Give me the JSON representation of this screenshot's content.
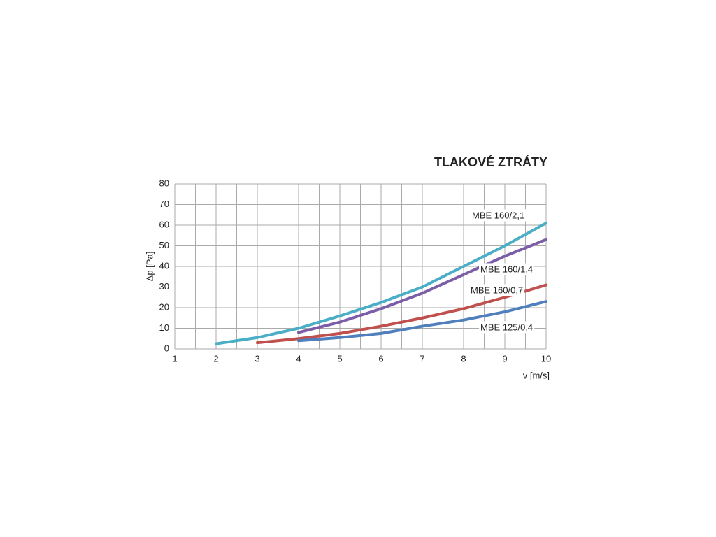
{
  "chart_data": {
    "type": "line",
    "title": "TLAKOVÉ ZTRÁTY",
    "x_label": "v [m/s]",
    "y_label": "Δp [Pa]",
    "xlim": [
      1,
      10
    ],
    "xticks": [
      1,
      2,
      3,
      4,
      5,
      6,
      7,
      8,
      9,
      10
    ],
    "ylim": [
      0,
      80
    ],
    "yticks": [
      0,
      10,
      20,
      30,
      40,
      50,
      60,
      70,
      80
    ],
    "grid": true,
    "minor_x_grid": true,
    "series": [
      {
        "name": "MBE 160/2,1",
        "color": "#4aaec6",
        "x": [
          2,
          3,
          4,
          5,
          6,
          7,
          8,
          9,
          10
        ],
        "values": [
          2.5,
          5.5,
          10,
          16,
          22.5,
          30,
          40,
          50,
          61
        ]
      },
      {
        "name": "MBE 160/1,4",
        "color": "#7b5ea7",
        "x": [
          4,
          5,
          6,
          7,
          8,
          9,
          10
        ],
        "values": [
          8,
          13,
          19.5,
          27,
          36,
          45,
          53
        ]
      },
      {
        "name": "MBE 160/0,7",
        "color": "#c0504d",
        "x": [
          3,
          4,
          5,
          6,
          7,
          8,
          9,
          10
        ],
        "values": [
          3,
          5,
          7.5,
          11,
          15,
          19.5,
          25,
          31
        ]
      },
      {
        "name": "MBE 125/0,4",
        "color": "#4f7fbd",
        "x": [
          4,
          5,
          6,
          7,
          8,
          9,
          10
        ],
        "values": [
          4,
          5.5,
          7.5,
          11,
          14,
          18,
          23
        ]
      }
    ]
  }
}
